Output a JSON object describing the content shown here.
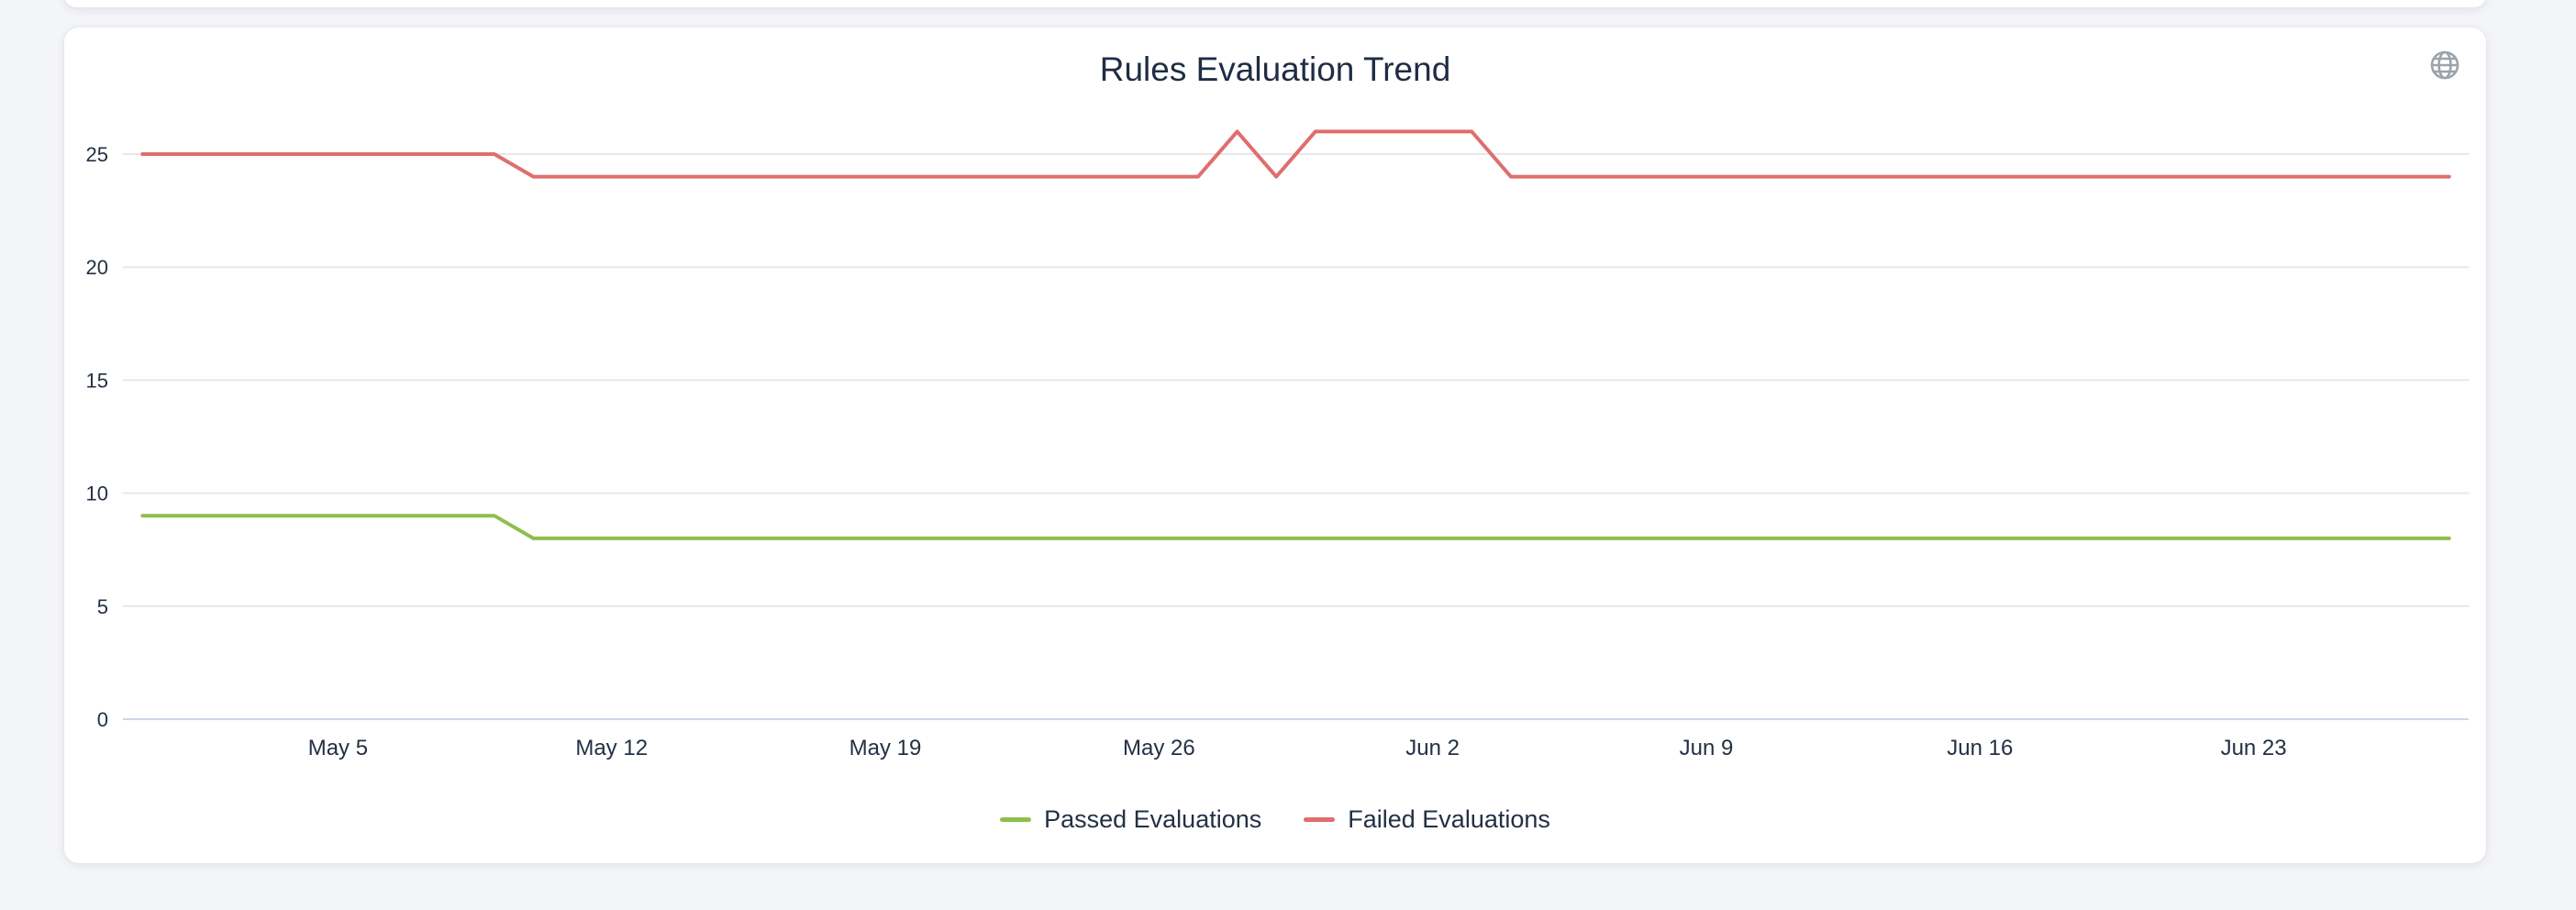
{
  "header": {
    "icon": "globe-icon"
  },
  "theme": {
    "page_background": "#f4f5f8",
    "card_background": "#ffffff",
    "text_color": "#233044",
    "grid_color": "#e7e7e7",
    "axis_line_color": "#ccd6eb",
    "icon_color": "#9ca3ab",
    "passed_color": "#8FBE4D",
    "failed_color": "#DF6E6E"
  },
  "chart_data": {
    "type": "line",
    "title": "Rules Evaluation Trend",
    "xlabel": "",
    "ylabel": "",
    "grid": true,
    "legend_position": "bottom",
    "ylim": [
      0,
      25
    ],
    "yticks": [
      0,
      5,
      10,
      15,
      20,
      25
    ],
    "xticks": [
      {
        "i": 5,
        "label": "May 5"
      },
      {
        "i": 12,
        "label": "May 12"
      },
      {
        "i": 19,
        "label": "May 19"
      },
      {
        "i": 26,
        "label": "May 26"
      },
      {
        "i": 33,
        "label": "Jun 2"
      },
      {
        "i": 40,
        "label": "Jun 9"
      },
      {
        "i": 47,
        "label": "Jun 16"
      },
      {
        "i": 54,
        "label": "Jun 23"
      }
    ],
    "x": [
      "Apr 30",
      "May 1",
      "May 2",
      "May 3",
      "May 4",
      "May 5",
      "May 6",
      "May 7",
      "May 8",
      "May 9",
      "May 10",
      "May 11",
      "May 12",
      "May 13",
      "May 14",
      "May 15",
      "May 16",
      "May 17",
      "May 18",
      "May 19",
      "May 20",
      "May 21",
      "May 22",
      "May 23",
      "May 24",
      "May 25",
      "May 26",
      "May 27",
      "May 28",
      "May 29",
      "May 30",
      "May 31",
      "Jun 1",
      "Jun 2",
      "Jun 3",
      "Jun 4",
      "Jun 5",
      "Jun 6",
      "Jun 7",
      "Jun 8",
      "Jun 9",
      "Jun 10",
      "Jun 11",
      "Jun 12",
      "Jun 13",
      "Jun 14",
      "Jun 15",
      "Jun 16",
      "Jun 17",
      "Jun 18",
      "Jun 19",
      "Jun 20",
      "Jun 21",
      "Jun 22",
      "Jun 23",
      "Jun 24",
      "Jun 25",
      "Jun 26",
      "Jun 27",
      "Jun 28"
    ],
    "series": [
      {
        "name": "Passed Evaluations",
        "color": "#8FBE4D",
        "values": [
          9,
          9,
          9,
          9,
          9,
          9,
          9,
          9,
          9,
          9,
          8,
          8,
          8,
          8,
          8,
          8,
          8,
          8,
          8,
          8,
          8,
          8,
          8,
          8,
          8,
          8,
          8,
          8,
          8,
          8,
          8,
          8,
          8,
          8,
          8,
          8,
          8,
          8,
          8,
          8,
          8,
          8,
          8,
          8,
          8,
          8,
          8,
          8,
          8,
          8,
          8,
          8,
          8,
          8,
          8,
          8,
          8,
          8,
          8,
          8
        ]
      },
      {
        "name": "Failed Evaluations",
        "color": "#DF6E6E",
        "values": [
          25,
          25,
          25,
          25,
          25,
          25,
          25,
          25,
          25,
          25,
          24,
          24,
          24,
          24,
          24,
          24,
          24,
          24,
          24,
          24,
          24,
          24,
          24,
          24,
          24,
          24,
          24,
          24,
          26,
          24,
          26,
          26,
          26,
          26,
          26,
          24,
          24,
          24,
          24,
          24,
          24,
          24,
          24,
          24,
          24,
          24,
          24,
          24,
          24,
          24,
          24,
          24,
          24,
          24,
          24,
          24,
          24,
          24,
          24,
          24
        ]
      }
    ]
  }
}
